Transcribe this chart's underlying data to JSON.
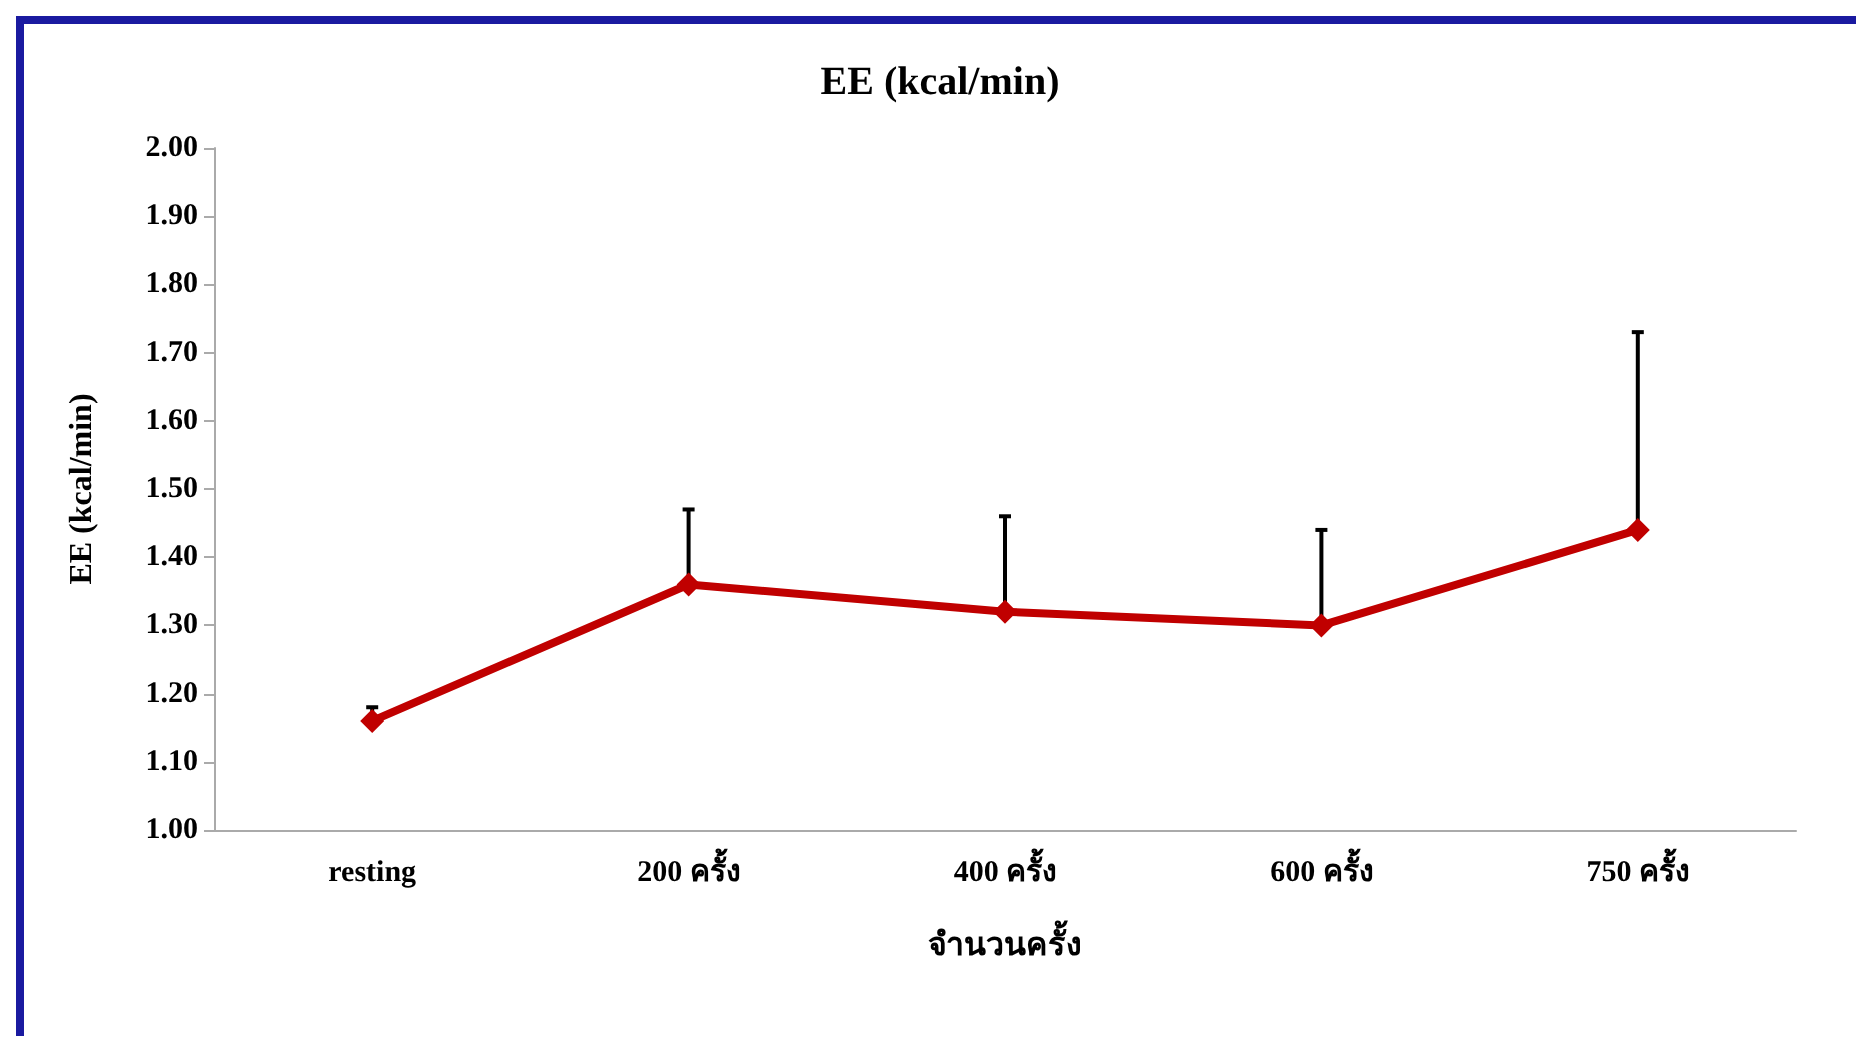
{
  "chart_data": {
    "type": "line",
    "title": "EE (kcal/min)",
    "xlabel": "จำนวนครั้ง",
    "ylabel": "EE (kcal/min)",
    "categories": [
      "resting",
      "200 ครั้ง",
      "400 ครั้ง",
      "600 ครั้ง",
      "750 ครั้ง"
    ],
    "series": [
      {
        "color": "#c00000",
        "values": [
          1.16,
          1.36,
          1.32,
          1.3,
          1.44
        ],
        "errors": [
          [
            1.16,
            1.18
          ],
          [
            1.36,
            1.47
          ],
          [
            1.32,
            1.46
          ],
          [
            1.3,
            1.44
          ],
          [
            1.44,
            1.73
          ]
        ]
      }
    ],
    "ylim": [
      1.0,
      2.0
    ],
    "yticks": [
      {
        "value": 1.0,
        "label": "1.00"
      },
      {
        "value": 1.1,
        "label": "1.10"
      },
      {
        "value": 1.2,
        "label": "1.20"
      },
      {
        "value": 1.3,
        "label": "1.30"
      },
      {
        "value": 1.4,
        "label": "1.40"
      },
      {
        "value": 1.5,
        "label": "1.50"
      },
      {
        "value": 1.6,
        "label": "1.60"
      },
      {
        "value": 1.7,
        "label": "1.70"
      },
      {
        "value": 1.8,
        "label": "1.80"
      },
      {
        "value": 1.9,
        "label": "1.90"
      },
      {
        "value": 2.0,
        "label": "2.00"
      }
    ],
    "grid": false,
    "marker": "diamond",
    "line_style": "solid"
  }
}
